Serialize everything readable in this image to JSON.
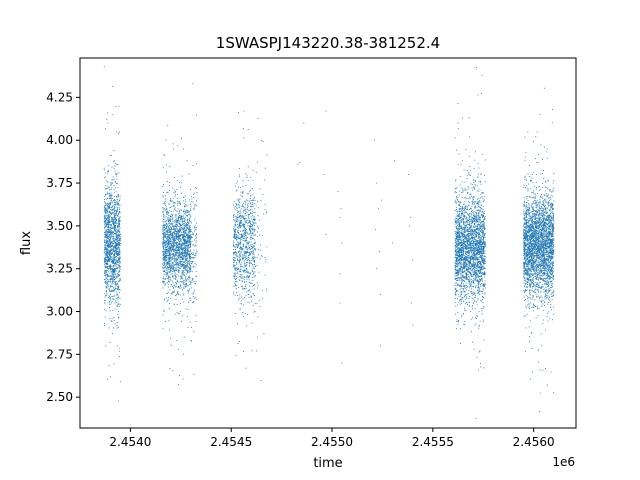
{
  "chart_data": {
    "type": "scatter",
    "title": "1SWASPJ143220.38-381252.4",
    "xlabel": "time",
    "ylabel": "flux",
    "x_offset_label": "1e6",
    "xlim": [
      2453750,
      2456210
    ],
    "ylim": [
      2.32,
      4.48
    ],
    "xticks": [
      2454000,
      2454500,
      2455000,
      2455500,
      2456000
    ],
    "xtick_labels": [
      "2.4540",
      "2.4545",
      "2.4550",
      "2.4555",
      "2.4560"
    ],
    "yticks": [
      2.5,
      2.75,
      3.0,
      3.25,
      3.5,
      3.75,
      4.0,
      4.25
    ],
    "ytick_labels": [
      "2.50",
      "2.75",
      "3.00",
      "3.25",
      "3.50",
      "3.75",
      "4.00",
      "4.25"
    ],
    "grid": false,
    "marker_color": "#1f77b4",
    "clusters": [
      {
        "x_start": 2453870,
        "x_end": 2453950,
        "y_center": 3.4,
        "y_spread": 0.17,
        "points": 1500
      },
      {
        "x_start": 2454160,
        "x_end": 2454300,
        "y_center": 3.38,
        "y_spread": 0.13,
        "points": 1900
      },
      {
        "x_start": 2454300,
        "x_end": 2454330,
        "y_center": 3.38,
        "y_spread": 0.22,
        "points": 120
      },
      {
        "x_start": 2454510,
        "x_end": 2454620,
        "y_center": 3.4,
        "y_spread": 0.16,
        "points": 900
      },
      {
        "x_start": 2454620,
        "x_end": 2454680,
        "y_center": 3.4,
        "y_spread": 0.25,
        "points": 60
      },
      {
        "x_start": 2455610,
        "x_end": 2455760,
        "y_center": 3.38,
        "y_spread": 0.15,
        "points": 2600
      },
      {
        "x_start": 2455950,
        "x_end": 2456100,
        "y_center": 3.38,
        "y_spread": 0.15,
        "points": 3000
      }
    ],
    "sparse_points": [
      {
        "x": 2454840,
        "y": 3.87
      },
      {
        "x": 2454830,
        "y": 3.86
      },
      {
        "x": 2454860,
        "y": 4.1
      },
      {
        "x": 2454970,
        "y": 4.17
      },
      {
        "x": 2454960,
        "y": 3.8
      },
      {
        "x": 2454970,
        "y": 3.45
      },
      {
        "x": 2455030,
        "y": 3.7
      },
      {
        "x": 2455040,
        "y": 3.55
      },
      {
        "x": 2455050,
        "y": 3.4
      },
      {
        "x": 2455040,
        "y": 3.05
      },
      {
        "x": 2455050,
        "y": 2.7
      },
      {
        "x": 2455040,
        "y": 3.22
      },
      {
        "x": 2455210,
        "y": 4.0
      },
      {
        "x": 2455220,
        "y": 3.75
      },
      {
        "x": 2455230,
        "y": 3.6
      },
      {
        "x": 2455215,
        "y": 3.48
      },
      {
        "x": 2455220,
        "y": 3.25
      },
      {
        "x": 2455240,
        "y": 3.1
      },
      {
        "x": 2455240,
        "y": 2.8
      },
      {
        "x": 2455300,
        "y": 3.4
      },
      {
        "x": 2455310,
        "y": 3.88
      },
      {
        "x": 2455380,
        "y": 3.8
      },
      {
        "x": 2455390,
        "y": 3.55
      },
      {
        "x": 2455400,
        "y": 3.3
      },
      {
        "x": 2455395,
        "y": 3.05
      },
      {
        "x": 2455400,
        "y": 2.92
      },
      {
        "x": 2455385,
        "y": 3.5
      },
      {
        "x": 2455245,
        "y": 3.65
      },
      {
        "x": 2455235,
        "y": 3.35
      },
      {
        "x": 2455045,
        "y": 3.6
      }
    ]
  }
}
